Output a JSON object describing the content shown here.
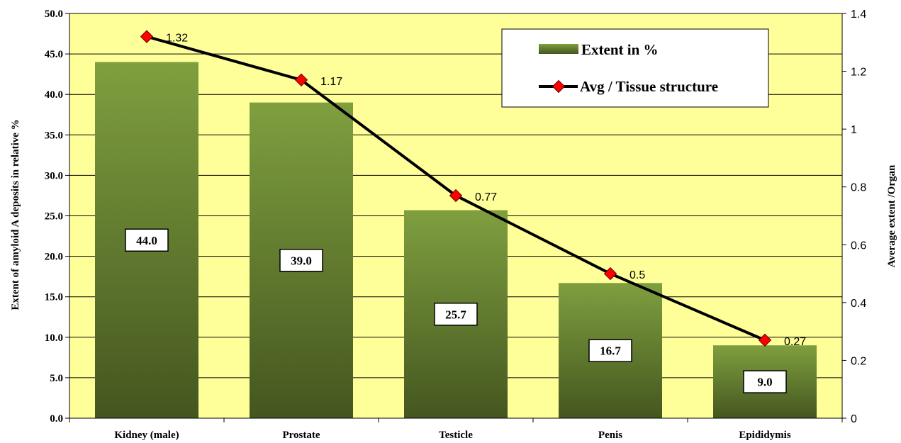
{
  "chart_data": {
    "type": "bar",
    "categories": [
      "Kidney (male)",
      "Prostate",
      "Testicle",
      "Penis",
      "Epididymis"
    ],
    "series": [
      {
        "name": "Extent in %",
        "type": "bar",
        "axis": "left",
        "values": [
          44.0,
          39.0,
          25.7,
          16.7,
          9.0
        ],
        "labels": [
          "44.0",
          "39.0",
          "25.7",
          "16.7",
          "9.0"
        ]
      },
      {
        "name": "Avg / Tissue structure",
        "type": "line",
        "axis": "right",
        "values": [
          1.32,
          1.17,
          0.77,
          0.5,
          0.27
        ],
        "labels": [
          "1.32",
          "1.17",
          "0.77",
          "0.5",
          "0.27"
        ]
      }
    ],
    "ylabel": "Extent of amyloid A deposits in relative %",
    "ylabel_right": "Average extent /Organ",
    "ylim": [
      0,
      50
    ],
    "ylim_right": [
      0,
      1.4
    ],
    "yticks": [
      "0.0",
      "5.0",
      "10.0",
      "15.0",
      "20.0",
      "25.0",
      "30.0",
      "35.0",
      "40.0",
      "45.0",
      "50.0"
    ],
    "yticks_right": [
      "0",
      "0.2",
      "0.4",
      "0.6",
      "0.8",
      "1",
      "1.2",
      "1.4"
    ],
    "grid": true,
    "legend_position": "top-right",
    "colors": {
      "plot_background": "#ffff99",
      "bar_top": "#7f9f3f",
      "bar_bottom": "#44561f",
      "line": "#000000",
      "marker": "#ff0000",
      "gridline": "#000000"
    }
  }
}
